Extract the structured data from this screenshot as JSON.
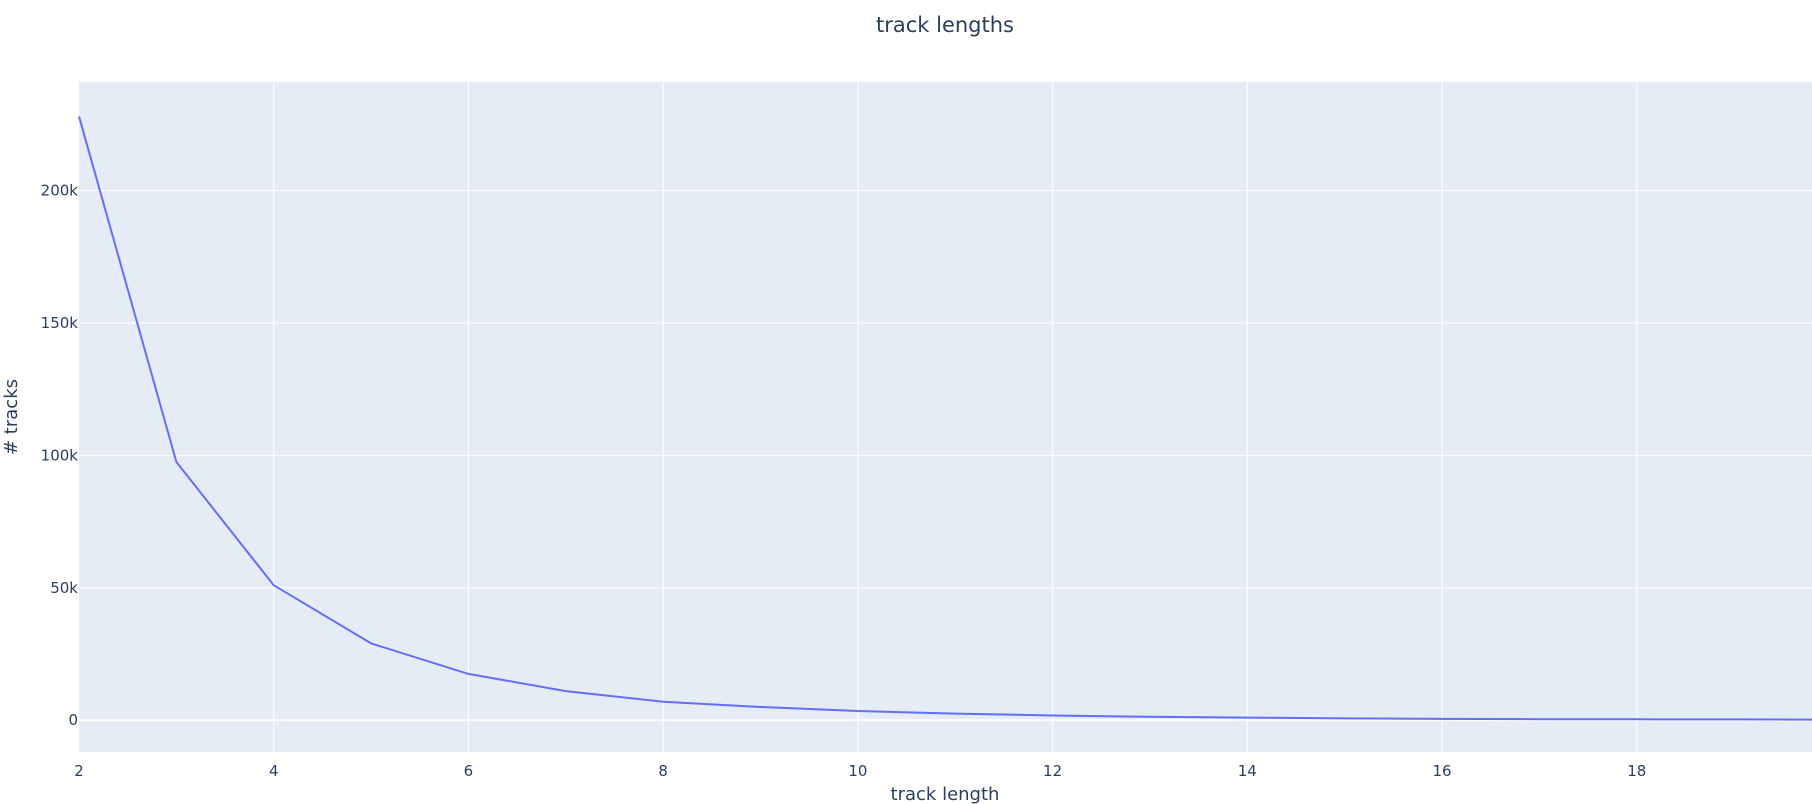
{
  "chart_data": {
    "type": "line",
    "title": "track lengths",
    "xlabel": "track length",
    "ylabel": "# tracks",
    "x": [
      2,
      3,
      4,
      5,
      6,
      7,
      8,
      9,
      10,
      11,
      12,
      13,
      14,
      15,
      16,
      17,
      18,
      19,
      19.8
    ],
    "series": [
      {
        "values": [
          228000,
          97500,
          51000,
          29000,
          17500,
          11000,
          7000,
          5000,
          3500,
          2500,
          1800,
          1300,
          1000,
          700,
          500,
          400,
          350,
          300,
          250
        ],
        "color": "#636efa"
      }
    ],
    "xlim": [
      2,
      19.8
    ],
    "ylim": [
      -12000,
      241000
    ],
    "xticks": [
      2,
      4,
      6,
      8,
      10,
      12,
      14,
      16,
      18
    ],
    "xtick_labels": [
      "2",
      "4",
      "6",
      "8",
      "10",
      "12",
      "14",
      "16",
      "18"
    ],
    "yticks": [
      0,
      50000,
      100000,
      150000,
      200000
    ],
    "ytick_labels": [
      "0",
      "50k",
      "100k",
      "150k",
      "200k"
    ],
    "grid": true,
    "plot_bgcolor": "#e5ecf6",
    "grid_color": "#ffffff",
    "text_color": "#2a3f5f"
  }
}
